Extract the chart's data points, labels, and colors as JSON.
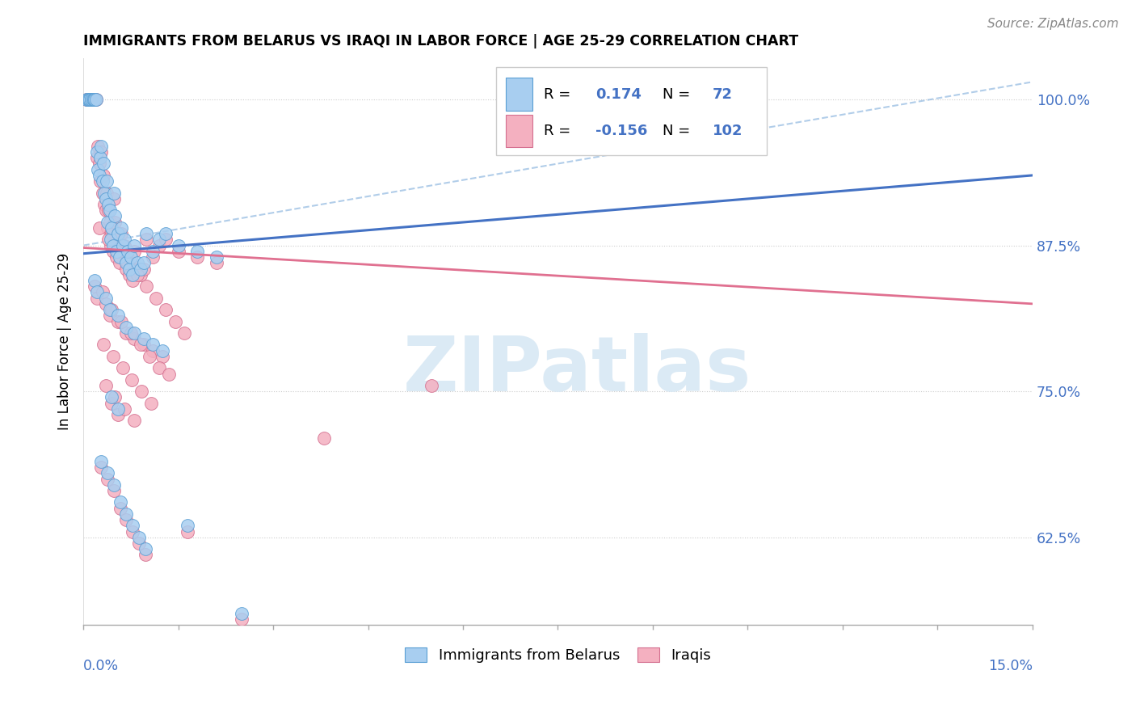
{
  "title": "IMMIGRANTS FROM BELARUS VS IRAQI IN LABOR FORCE | AGE 25-29 CORRELATION CHART",
  "source": "Source: ZipAtlas.com",
  "ylabel_label": "In Labor Force | Age 25-29",
  "label_belarus": "Immigrants from Belarus",
  "label_iraqi": "Iraqis",
  "xlim": [
    0.0,
    15.0
  ],
  "ylim": [
    55.0,
    103.5
  ],
  "yticks": [
    62.5,
    75.0,
    87.5,
    100.0
  ],
  "ytick_labels": [
    "62.5%",
    "75.0%",
    "87.5%",
    "100.0%"
  ],
  "blue_color": "#A8CEF0",
  "blue_edge_color": "#5A9FD4",
  "blue_line_color": "#4472C4",
  "pink_color": "#F4B0C0",
  "pink_edge_color": "#D47090",
  "pink_line_color": "#E07090",
  "accent_color": "#4472C4",
  "watermark_text": "ZIPatlas",
  "r_blue": "0.174",
  "n_blue": "72",
  "r_pink": "-0.156",
  "n_pink": "102",
  "blue_trend_x0": 0.0,
  "blue_trend_y0": 86.8,
  "blue_trend_x1": 15.0,
  "blue_trend_y1": 93.5,
  "pink_trend_x0": 0.0,
  "pink_trend_y0": 87.3,
  "pink_trend_x1": 15.0,
  "pink_trend_y1": 82.5,
  "dash_x0": 0.0,
  "dash_y0": 87.5,
  "dash_x1": 15.0,
  "dash_y1": 101.5,
  "blue_x": [
    0.05,
    0.07,
    0.09,
    0.1,
    0.12,
    0.13,
    0.15,
    0.17,
    0.18,
    0.2,
    0.22,
    0.23,
    0.25,
    0.27,
    0.28,
    0.3,
    0.32,
    0.33,
    0.35,
    0.37,
    0.38,
    0.4,
    0.42,
    0.43,
    0.45,
    0.47,
    0.48,
    0.5,
    0.52,
    0.55,
    0.57,
    0.6,
    0.62,
    0.65,
    0.68,
    0.7,
    0.73,
    0.75,
    0.78,
    0.8,
    0.85,
    0.9,
    0.95,
    1.0,
    1.1,
    1.2,
    1.3,
    1.5,
    1.8,
    2.1,
    0.18,
    0.22,
    0.35,
    0.42,
    0.55,
    0.68,
    0.8,
    0.95,
    1.1,
    1.25,
    0.28,
    0.38,
    0.48,
    0.58,
    0.68,
    0.78,
    0.88,
    0.98,
    0.45,
    0.55,
    1.65,
    2.5
  ],
  "blue_y": [
    100.0,
    100.0,
    100.0,
    100.0,
    100.0,
    100.0,
    100.0,
    100.0,
    100.0,
    100.0,
    95.5,
    94.0,
    93.5,
    95.0,
    96.0,
    93.0,
    94.5,
    92.0,
    91.5,
    93.0,
    89.5,
    91.0,
    90.5,
    88.0,
    89.0,
    87.5,
    92.0,
    90.0,
    87.0,
    88.5,
    86.5,
    89.0,
    87.5,
    88.0,
    86.0,
    87.0,
    85.5,
    86.5,
    85.0,
    87.5,
    86.0,
    85.5,
    86.0,
    88.5,
    87.0,
    88.0,
    88.5,
    87.5,
    87.0,
    86.5,
    84.5,
    83.5,
    83.0,
    82.0,
    81.5,
    80.5,
    80.0,
    79.5,
    79.0,
    78.5,
    69.0,
    68.0,
    67.0,
    65.5,
    64.5,
    63.5,
    62.5,
    61.5,
    74.5,
    73.5,
    63.5,
    56.0
  ],
  "pink_x": [
    0.05,
    0.07,
    0.09,
    0.1,
    0.12,
    0.13,
    0.15,
    0.17,
    0.18,
    0.2,
    0.22,
    0.23,
    0.25,
    0.27,
    0.28,
    0.3,
    0.32,
    0.33,
    0.35,
    0.37,
    0.38,
    0.4,
    0.42,
    0.43,
    0.45,
    0.47,
    0.48,
    0.5,
    0.52,
    0.55,
    0.57,
    0.6,
    0.62,
    0.65,
    0.68,
    0.7,
    0.73,
    0.75,
    0.78,
    0.8,
    0.85,
    0.9,
    0.95,
    1.0,
    1.1,
    1.2,
    1.3,
    1.5,
    1.8,
    2.1,
    0.18,
    0.22,
    0.35,
    0.42,
    0.55,
    0.68,
    0.8,
    0.95,
    1.1,
    1.25,
    0.28,
    0.38,
    0.48,
    0.58,
    0.68,
    0.78,
    0.88,
    0.98,
    0.45,
    0.55,
    1.65,
    2.5,
    0.3,
    0.45,
    0.6,
    0.75,
    0.9,
    1.05,
    1.2,
    1.35,
    0.35,
    0.5,
    0.65,
    0.8,
    3.8,
    5.5,
    0.25,
    0.4,
    0.55,
    0.7,
    0.85,
    1.0,
    1.15,
    1.3,
    1.45,
    1.6,
    0.32,
    0.47,
    0.62,
    0.77,
    0.92,
    1.07
  ],
  "pink_y": [
    100.0,
    100.0,
    100.0,
    100.0,
    100.0,
    100.0,
    100.0,
    100.0,
    100.0,
    100.0,
    95.0,
    96.0,
    94.5,
    93.0,
    95.5,
    92.0,
    93.5,
    91.0,
    90.5,
    92.0,
    89.0,
    90.5,
    89.5,
    87.5,
    88.5,
    87.0,
    91.5,
    89.5,
    86.5,
    88.0,
    86.0,
    88.5,
    87.0,
    87.5,
    85.5,
    86.5,
    85.0,
    86.0,
    84.5,
    87.0,
    85.5,
    85.0,
    85.5,
    88.0,
    86.5,
    87.5,
    88.0,
    87.0,
    86.5,
    86.0,
    84.0,
    83.0,
    82.5,
    81.5,
    81.0,
    80.0,
    79.5,
    79.0,
    78.5,
    78.0,
    68.5,
    67.5,
    66.5,
    65.0,
    64.0,
    63.0,
    62.0,
    61.0,
    74.0,
    73.0,
    63.0,
    55.5,
    83.5,
    82.0,
    81.0,
    80.0,
    79.0,
    78.0,
    77.0,
    76.5,
    75.5,
    74.5,
    73.5,
    72.5,
    71.0,
    75.5,
    89.0,
    88.0,
    87.0,
    86.0,
    85.0,
    84.0,
    83.0,
    82.0,
    81.0,
    80.0,
    79.0,
    78.0,
    77.0,
    76.0,
    75.0,
    74.0
  ]
}
